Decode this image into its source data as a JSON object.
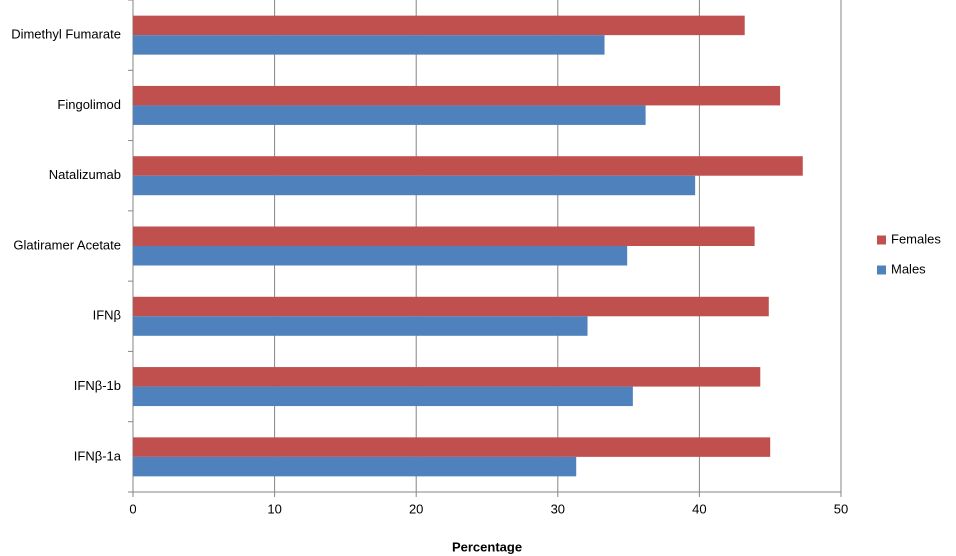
{
  "chart_data": {
    "type": "hbar",
    "xlabel": "Percentage",
    "categories": [
      "Dimethyl Fumarate",
      "Fingolimod",
      "Natalizumab",
      "Glatiramer Acetate",
      "IFNβ",
      "IFNβ-1b",
      "IFNβ-1a"
    ],
    "series": [
      {
        "name": "Females",
        "color": "#c0504d",
        "values": [
          43.2,
          45.7,
          47.3,
          43.9,
          44.9,
          44.3,
          45.0
        ]
      },
      {
        "name": "Males",
        "color": "#4f81bd",
        "values": [
          33.3,
          36.2,
          39.7,
          34.9,
          32.1,
          35.3,
          31.3
        ]
      }
    ],
    "xlim": [
      0,
      50
    ],
    "xticks": [
      0,
      10,
      20,
      30,
      40,
      50
    ],
    "grid": true,
    "legend": "right"
  }
}
